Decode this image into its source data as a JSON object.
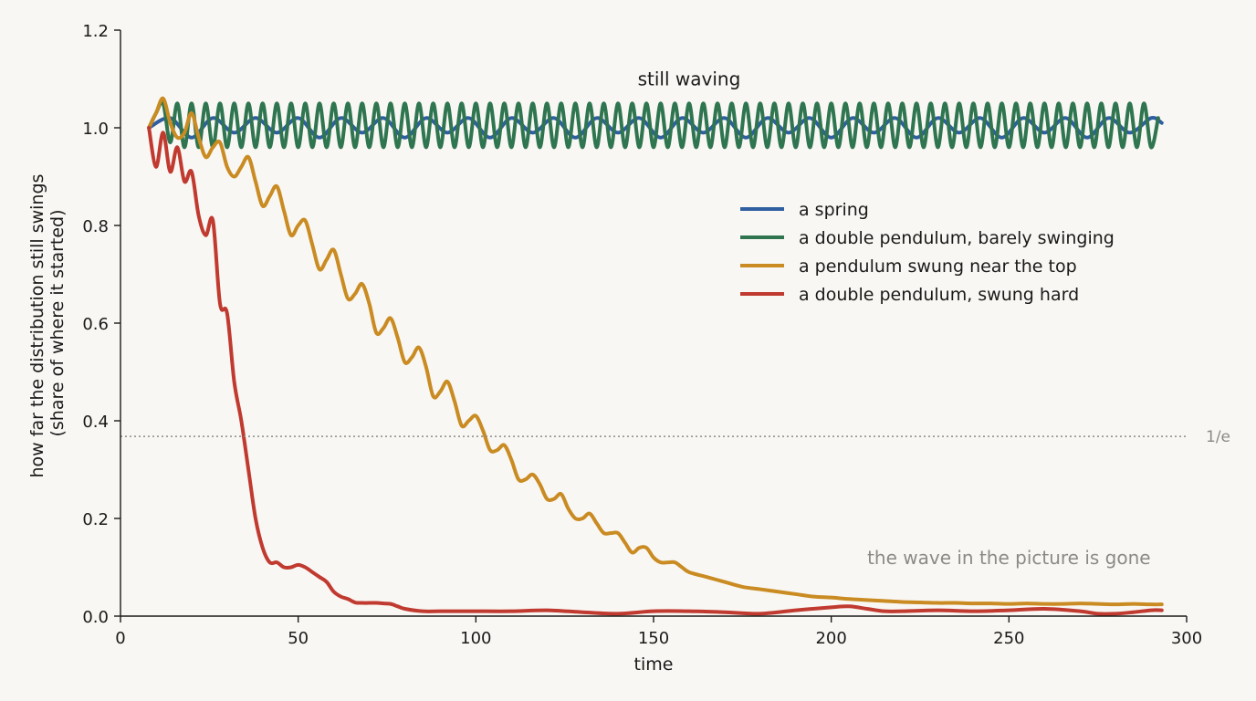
{
  "chart_data": {
    "type": "line",
    "xlabel": "time",
    "ylabel": [
      "how far the distribution still swings",
      "(share of where it started)"
    ],
    "xlim": [
      0,
      300
    ],
    "ylim": [
      0,
      1.2
    ],
    "xticks": [
      0,
      50,
      100,
      150,
      200,
      250,
      300
    ],
    "yticks": [
      0.0,
      0.2,
      0.4,
      0.6,
      0.8,
      1.0,
      1.2
    ],
    "xtick_labels": [
      "0",
      "50",
      "100",
      "150",
      "200",
      "250",
      "300"
    ],
    "ytick_labels": [
      "0.0",
      "0.2",
      "0.4",
      "0.6",
      "0.8",
      "1.0",
      "1.2"
    ],
    "grid": false,
    "legend_position": "right",
    "reference_line": {
      "y": 0.368,
      "label": "1/e",
      "color": "#8a8a86"
    },
    "annotations": [
      {
        "text": "still waving",
        "x": 160,
        "y": 1.1,
        "style": "dark"
      },
      {
        "text": "the wave in the picture is gone",
        "x": 250,
        "y": 0.12,
        "style": "grey"
      }
    ],
    "series": [
      {
        "name": "a spring",
        "color": "#2f5fa0",
        "x": [
          8,
          14,
          20,
          26,
          32,
          38,
          44,
          50,
          56,
          62,
          68,
          74,
          80,
          86,
          92,
          98,
          104,
          110,
          116,
          122,
          128,
          134,
          140,
          146,
          152,
          158,
          164,
          170,
          176,
          182,
          188,
          194,
          200,
          206,
          212,
          218,
          224,
          230,
          236,
          242,
          248,
          254,
          260,
          266,
          272,
          278,
          284,
          290,
          293
        ],
        "y": [
          1.0,
          1.02,
          0.98,
          1.02,
          0.99,
          1.02,
          0.99,
          1.02,
          0.98,
          1.02,
          0.99,
          1.02,
          0.98,
          1.02,
          0.99,
          1.02,
          0.98,
          1.02,
          0.99,
          1.02,
          0.98,
          1.02,
          0.99,
          1.02,
          0.98,
          1.02,
          0.99,
          1.02,
          0.98,
          1.02,
          0.99,
          1.02,
          0.98,
          1.02,
          0.99,
          1.02,
          0.98,
          1.02,
          0.99,
          1.02,
          0.98,
          1.02,
          0.99,
          1.02,
          0.98,
          1.02,
          0.99,
          1.02,
          1.01
        ]
      },
      {
        "name": "a double pendulum, barely swinging",
        "color": "#2e7550",
        "x": [
          8,
          10,
          12,
          14,
          16,
          18,
          20,
          22,
          24,
          26,
          28,
          30,
          32,
          34,
          36,
          38,
          40,
          42,
          44,
          46,
          48,
          50,
          52,
          54,
          56,
          58,
          60,
          62,
          64,
          66,
          68,
          70,
          72,
          74,
          76,
          78,
          80,
          82,
          84,
          86,
          88,
          90,
          92,
          94,
          96,
          98,
          100,
          102,
          104,
          106,
          108,
          110,
          112,
          114,
          116,
          118,
          120,
          122,
          124,
          126,
          128,
          130,
          132,
          134,
          136,
          138,
          140,
          142,
          144,
          146,
          148,
          150,
          152,
          154,
          156,
          158,
          160,
          162,
          164,
          166,
          168,
          170,
          172,
          174,
          176,
          178,
          180,
          182,
          184,
          186,
          188,
          190,
          192,
          194,
          196,
          198,
          200,
          202,
          204,
          206,
          208,
          210,
          212,
          214,
          216,
          218,
          220,
          222,
          224,
          226,
          228,
          230,
          232,
          234,
          236,
          238,
          240,
          242,
          244,
          246,
          248,
          250,
          252,
          254,
          256,
          258,
          260,
          262,
          264,
          266,
          268,
          270,
          272,
          274,
          276,
          278,
          280,
          282,
          284,
          286,
          288,
          290,
          292
        ],
        "y": [
          1.0,
          1.03,
          1.05,
          0.97,
          1.05,
          0.96,
          1.05,
          0.96,
          1.05,
          0.96,
          1.05,
          0.96,
          1.05,
          0.96,
          1.05,
          0.96,
          1.05,
          0.96,
          1.05,
          0.96,
          1.05,
          0.96,
          1.05,
          0.96,
          1.05,
          0.96,
          1.05,
          0.96,
          1.05,
          0.96,
          1.05,
          0.96,
          1.05,
          0.96,
          1.05,
          0.96,
          1.05,
          0.96,
          1.05,
          0.96,
          1.05,
          0.96,
          1.05,
          0.96,
          1.05,
          0.96,
          1.05,
          0.96,
          1.05,
          0.96,
          1.05,
          0.96,
          1.05,
          0.96,
          1.05,
          0.96,
          1.05,
          0.96,
          1.05,
          0.96,
          1.05,
          0.96,
          1.05,
          0.96,
          1.05,
          0.96,
          1.05,
          0.96,
          1.05,
          0.96,
          1.05,
          0.96,
          1.05,
          0.96,
          1.05,
          0.96,
          1.05,
          0.96,
          1.05,
          0.96,
          1.05,
          0.96,
          1.05,
          0.96,
          1.05,
          0.96,
          1.05,
          0.96,
          1.05,
          0.96,
          1.05,
          0.96,
          1.05,
          0.96,
          1.05,
          0.96,
          1.05,
          0.96,
          1.05,
          0.96,
          1.05,
          0.96,
          1.05,
          0.96,
          1.05,
          0.96,
          1.05,
          0.96,
          1.05,
          0.96,
          1.05,
          0.96,
          1.05,
          0.96,
          1.05,
          0.96,
          1.05,
          0.96,
          1.05,
          0.96,
          1.05,
          0.96,
          1.05,
          0.96,
          1.05,
          0.96,
          1.05,
          0.96,
          1.05,
          0.96,
          1.05,
          0.96,
          1.05,
          0.96,
          1.05,
          0.96,
          1.05,
          0.96,
          1.05,
          0.96,
          1.05,
          0.96,
          1.02
        ]
      },
      {
        "name": "a pendulum swung near the top",
        "color": "#c98b22",
        "x": [
          8,
          10,
          12,
          14,
          16,
          18,
          20,
          22,
          24,
          26,
          28,
          30,
          32,
          34,
          36,
          38,
          40,
          42,
          44,
          46,
          48,
          50,
          52,
          54,
          56,
          58,
          60,
          62,
          64,
          66,
          68,
          70,
          72,
          74,
          76,
          78,
          80,
          82,
          84,
          86,
          88,
          90,
          92,
          94,
          96,
          98,
          100,
          102,
          104,
          106,
          108,
          110,
          112,
          114,
          116,
          118,
          120,
          122,
          124,
          126,
          128,
          130,
          132,
          134,
          136,
          138,
          140,
          142,
          144,
          146,
          148,
          150,
          152,
          154,
          156,
          158,
          160,
          165,
          170,
          175,
          180,
          185,
          190,
          195,
          200,
          205,
          210,
          215,
          220,
          225,
          230,
          235,
          240,
          245,
          250,
          255,
          260,
          265,
          270,
          275,
          280,
          285,
          290,
          293
        ],
        "y": [
          1.0,
          1.03,
          1.06,
          1.01,
          0.98,
          0.99,
          1.03,
          0.98,
          0.94,
          0.96,
          0.97,
          0.92,
          0.9,
          0.92,
          0.94,
          0.89,
          0.84,
          0.86,
          0.88,
          0.83,
          0.78,
          0.8,
          0.81,
          0.76,
          0.71,
          0.73,
          0.75,
          0.7,
          0.65,
          0.66,
          0.68,
          0.64,
          0.58,
          0.59,
          0.61,
          0.57,
          0.52,
          0.53,
          0.55,
          0.51,
          0.45,
          0.46,
          0.48,
          0.44,
          0.39,
          0.4,
          0.41,
          0.38,
          0.34,
          0.34,
          0.35,
          0.32,
          0.28,
          0.28,
          0.29,
          0.27,
          0.24,
          0.24,
          0.25,
          0.22,
          0.2,
          0.2,
          0.21,
          0.19,
          0.17,
          0.17,
          0.17,
          0.15,
          0.13,
          0.14,
          0.14,
          0.12,
          0.11,
          0.11,
          0.11,
          0.1,
          0.09,
          0.08,
          0.07,
          0.06,
          0.055,
          0.05,
          0.045,
          0.04,
          0.038,
          0.035,
          0.033,
          0.031,
          0.029,
          0.028,
          0.027,
          0.027,
          0.026,
          0.026,
          0.025,
          0.026,
          0.025,
          0.025,
          0.026,
          0.025,
          0.024,
          0.025,
          0.024,
          0.024
        ]
      },
      {
        "name": "a double pendulum, swung hard",
        "color": "#c03a30",
        "x": [
          8,
          10,
          12,
          14,
          16,
          18,
          20,
          22,
          24,
          26,
          28,
          30,
          32,
          34,
          36,
          38,
          40,
          42,
          44,
          46,
          48,
          50,
          52,
          54,
          56,
          58,
          60,
          62,
          64,
          66,
          68,
          70,
          72,
          74,
          76,
          78,
          80,
          85,
          90,
          95,
          100,
          110,
          120,
          130,
          140,
          150,
          160,
          170,
          180,
          190,
          200,
          205,
          210,
          215,
          220,
          230,
          240,
          250,
          260,
          270,
          275,
          280,
          285,
          290,
          293
        ],
        "y": [
          1.0,
          0.92,
          0.99,
          0.91,
          0.96,
          0.89,
          0.91,
          0.82,
          0.78,
          0.81,
          0.64,
          0.62,
          0.48,
          0.4,
          0.3,
          0.2,
          0.14,
          0.11,
          0.11,
          0.1,
          0.1,
          0.105,
          0.1,
          0.09,
          0.08,
          0.07,
          0.05,
          0.04,
          0.035,
          0.028,
          0.027,
          0.027,
          0.027,
          0.026,
          0.025,
          0.02,
          0.015,
          0.01,
          0.01,
          0.01,
          0.01,
          0.01,
          0.012,
          0.008,
          0.005,
          0.01,
          0.01,
          0.008,
          0.005,
          0.012,
          0.018,
          0.02,
          0.015,
          0.01,
          0.01,
          0.012,
          0.01,
          0.012,
          0.015,
          0.01,
          0.005,
          0.005,
          0.008,
          0.012,
          0.012
        ]
      }
    ]
  }
}
